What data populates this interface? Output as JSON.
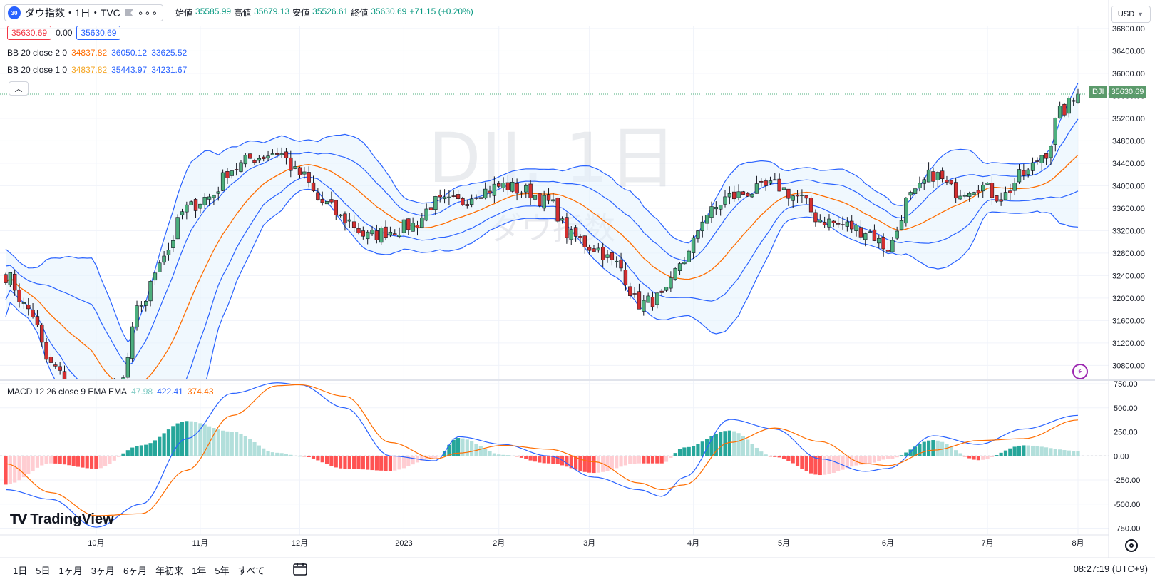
{
  "header": {
    "symbol_badge": "30",
    "symbol_title": "ダウ指数・1日・TVC",
    "more_icon": "more-dots-icon",
    "ohlc": {
      "open_label": "始値",
      "open": "35585.99",
      "high_label": "高値",
      "high": "35679.13",
      "low_label": "安値",
      "low": "35526.61",
      "close_label": "終値",
      "close": "35630.69",
      "change": "+71.15 (+0.20%)"
    },
    "currency": "USD"
  },
  "quote_row": {
    "bid": "35630.69",
    "spread": "0.00",
    "ask": "35630.69"
  },
  "indicators": {
    "bb2": {
      "label": "BB 20 close 2 0",
      "basis": "34837.82",
      "upper": "36050.12",
      "lower": "33625.52"
    },
    "bb1": {
      "label": "BB 20 close 1 0",
      "basis": "34837.82",
      "upper": "35443.97",
      "lower": "34231.67"
    },
    "macd": {
      "label": "MACD 12 26 close 9 EMA EMA",
      "histogram": "47.98",
      "macd": "422.41",
      "signal": "374.43"
    }
  },
  "watermark": {
    "title": "DJI, 1日",
    "subtitle": "ダウ指数"
  },
  "last_price": {
    "symbol": "DJI",
    "value": "35630.69"
  },
  "colors": {
    "up": "#26a69a",
    "down": "#ef5350",
    "bb_band": "#2962ff",
    "bb_basis": "#ff6d00",
    "band_fill": "#e3f2fd",
    "macd": "#2962ff",
    "signal": "#ff6d00",
    "hist_up_strong": "#26a69a",
    "hist_up_weak": "#b2dfdb",
    "hist_down_strong": "#ff5252",
    "hist_down_weak": "#ffcdd2"
  },
  "bottom_bar": {
    "ranges": [
      "1日",
      "5日",
      "1ヶ月",
      "3ヶ月",
      "6ヶ月",
      "年初来",
      "1年",
      "5年",
      "すべて"
    ],
    "calendar_icon": "calendar-range-icon",
    "time": "08:27:19 (UTC+9)"
  },
  "chart_data": {
    "type": "candlestick",
    "title": "ダウ指数・1日・TVC",
    "price_axis": {
      "ticks": [
        30800,
        31200,
        31600,
        32000,
        32400,
        32800,
        33200,
        33600,
        34000,
        34400,
        34800,
        35200,
        35600,
        36000,
        36400,
        36800
      ],
      "tick_labels": [
        "30800.00",
        "31200.00",
        "31600.00",
        "32000.00",
        "32400.00",
        "32800.00",
        "33200.00",
        "33600.00",
        "34000.00",
        "34400.00",
        "34800.00",
        "35200.00",
        "35600.00",
        "36000.00",
        "36400.00",
        "36800.00"
      ],
      "range": [
        30550,
        36850
      ]
    },
    "macd_axis": {
      "ticks": [
        -750,
        -500,
        -250,
        0,
        250,
        500,
        750
      ],
      "tick_labels": [
        "-750.00",
        "-500.00",
        "-250.00",
        "0.00",
        "250.00",
        "500.00",
        "750.00"
      ],
      "range": [
        -820,
        780
      ]
    },
    "time_axis": {
      "labels": [
        "10月",
        "11月",
        "12月",
        "2023",
        "2月",
        "3月",
        "4月",
        "5月",
        "6月",
        "7月",
        "8月"
      ],
      "label_bar_index": [
        20,
        43,
        65,
        88,
        109,
        129,
        152,
        172,
        195,
        217,
        237
      ],
      "bar_count": 238
    },
    "closes": [
      [
        0,
        32400
      ],
      [
        5,
        31800
      ],
      [
        10,
        30800
      ],
      [
        15,
        30300
      ],
      [
        20,
        29700
      ],
      [
        25,
        30400
      ],
      [
        30,
        31900
      ],
      [
        35,
        32800
      ],
      [
        40,
        33600
      ],
      [
        45,
        33800
      ],
      [
        50,
        34300
      ],
      [
        55,
        34500
      ],
      [
        60,
        34600
      ],
      [
        65,
        34200
      ],
      [
        70,
        33700
      ],
      [
        75,
        33400
      ],
      [
        80,
        33100
      ],
      [
        85,
        33200
      ],
      [
        90,
        33300
      ],
      [
        95,
        33700
      ],
      [
        100,
        33700
      ],
      [
        105,
        33900
      ],
      [
        110,
        34000
      ],
      [
        115,
        33900
      ],
      [
        120,
        33700
      ],
      [
        125,
        33100
      ],
      [
        130,
        32900
      ],
      [
        135,
        32600
      ],
      [
        140,
        31900
      ],
      [
        145,
        32000
      ],
      [
        150,
        32700
      ],
      [
        155,
        33500
      ],
      [
        160,
        33800
      ],
      [
        165,
        33900
      ],
      [
        170,
        34000
      ],
      [
        175,
        33800
      ],
      [
        180,
        33400
      ],
      [
        185,
        33300
      ],
      [
        190,
        33200
      ],
      [
        195,
        32900
      ],
      [
        200,
        33800
      ],
      [
        205,
        34200
      ],
      [
        210,
        33900
      ],
      [
        215,
        34000
      ],
      [
        220,
        33800
      ],
      [
        225,
        34200
      ],
      [
        230,
        34600
      ],
      [
        233,
        35300
      ],
      [
        236,
        35500
      ],
      [
        237,
        35630.69
      ]
    ],
    "macd_points": [
      [
        0,
        -350
      ],
      [
        10,
        -450
      ],
      [
        20,
        -740
      ],
      [
        30,
        -500
      ],
      [
        40,
        180
      ],
      [
        50,
        650
      ],
      [
        60,
        760
      ],
      [
        65,
        740
      ],
      [
        75,
        500
      ],
      [
        85,
        0
      ],
      [
        95,
        -50
      ],
      [
        100,
        200
      ],
      [
        110,
        120
      ],
      [
        120,
        0
      ],
      [
        130,
        -220
      ],
      [
        140,
        -350
      ],
      [
        145,
        -420
      ],
      [
        150,
        -220
      ],
      [
        160,
        380
      ],
      [
        170,
        280
      ],
      [
        180,
        -30
      ],
      [
        190,
        -160
      ],
      [
        195,
        -130
      ],
      [
        205,
        210
      ],
      [
        215,
        120
      ],
      [
        225,
        280
      ],
      [
        237,
        422
      ]
    ],
    "signal_points": [
      [
        0,
        -80
      ],
      [
        10,
        -380
      ],
      [
        20,
        -620
      ],
      [
        30,
        -600
      ],
      [
        40,
        -150
      ],
      [
        50,
        420
      ],
      [
        60,
        730
      ],
      [
        65,
        740
      ],
      [
        75,
        620
      ],
      [
        85,
        140
      ],
      [
        95,
        -30
      ],
      [
        100,
        30
      ],
      [
        110,
        110
      ],
      [
        120,
        70
      ],
      [
        130,
        -60
      ],
      [
        140,
        -280
      ],
      [
        145,
        -350
      ],
      [
        150,
        -300
      ],
      [
        160,
        140
      ],
      [
        170,
        290
      ],
      [
        180,
        150
      ],
      [
        190,
        -80
      ],
      [
        195,
        -100
      ],
      [
        205,
        60
      ],
      [
        215,
        160
      ],
      [
        225,
        180
      ],
      [
        237,
        374
      ]
    ]
  }
}
